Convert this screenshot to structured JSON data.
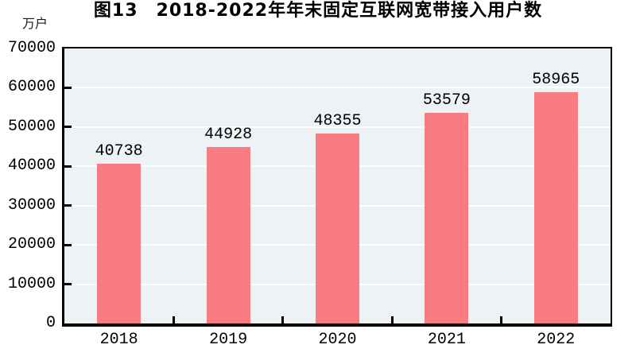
{
  "chart_data": {
    "type": "bar",
    "title": "图13　2018-2022年年末固定互联网宽带接入用户数",
    "unit": "万户",
    "categories": [
      "2018",
      "2019",
      "2020",
      "2021",
      "2022"
    ],
    "values": [
      40738,
      44928,
      48355,
      53579,
      58965
    ],
    "xlabel": "",
    "ylabel": "万户",
    "ylim": [
      0,
      70000
    ],
    "yticks": [
      0,
      10000,
      20000,
      30000,
      40000,
      50000,
      60000,
      70000
    ],
    "grid": true,
    "legend_position": "none",
    "colors": {
      "bar": "#f97d80",
      "plot_background": "#edf2f5",
      "gridline": "#ffffff",
      "axis": "#000000",
      "text": "#000000"
    }
  }
}
